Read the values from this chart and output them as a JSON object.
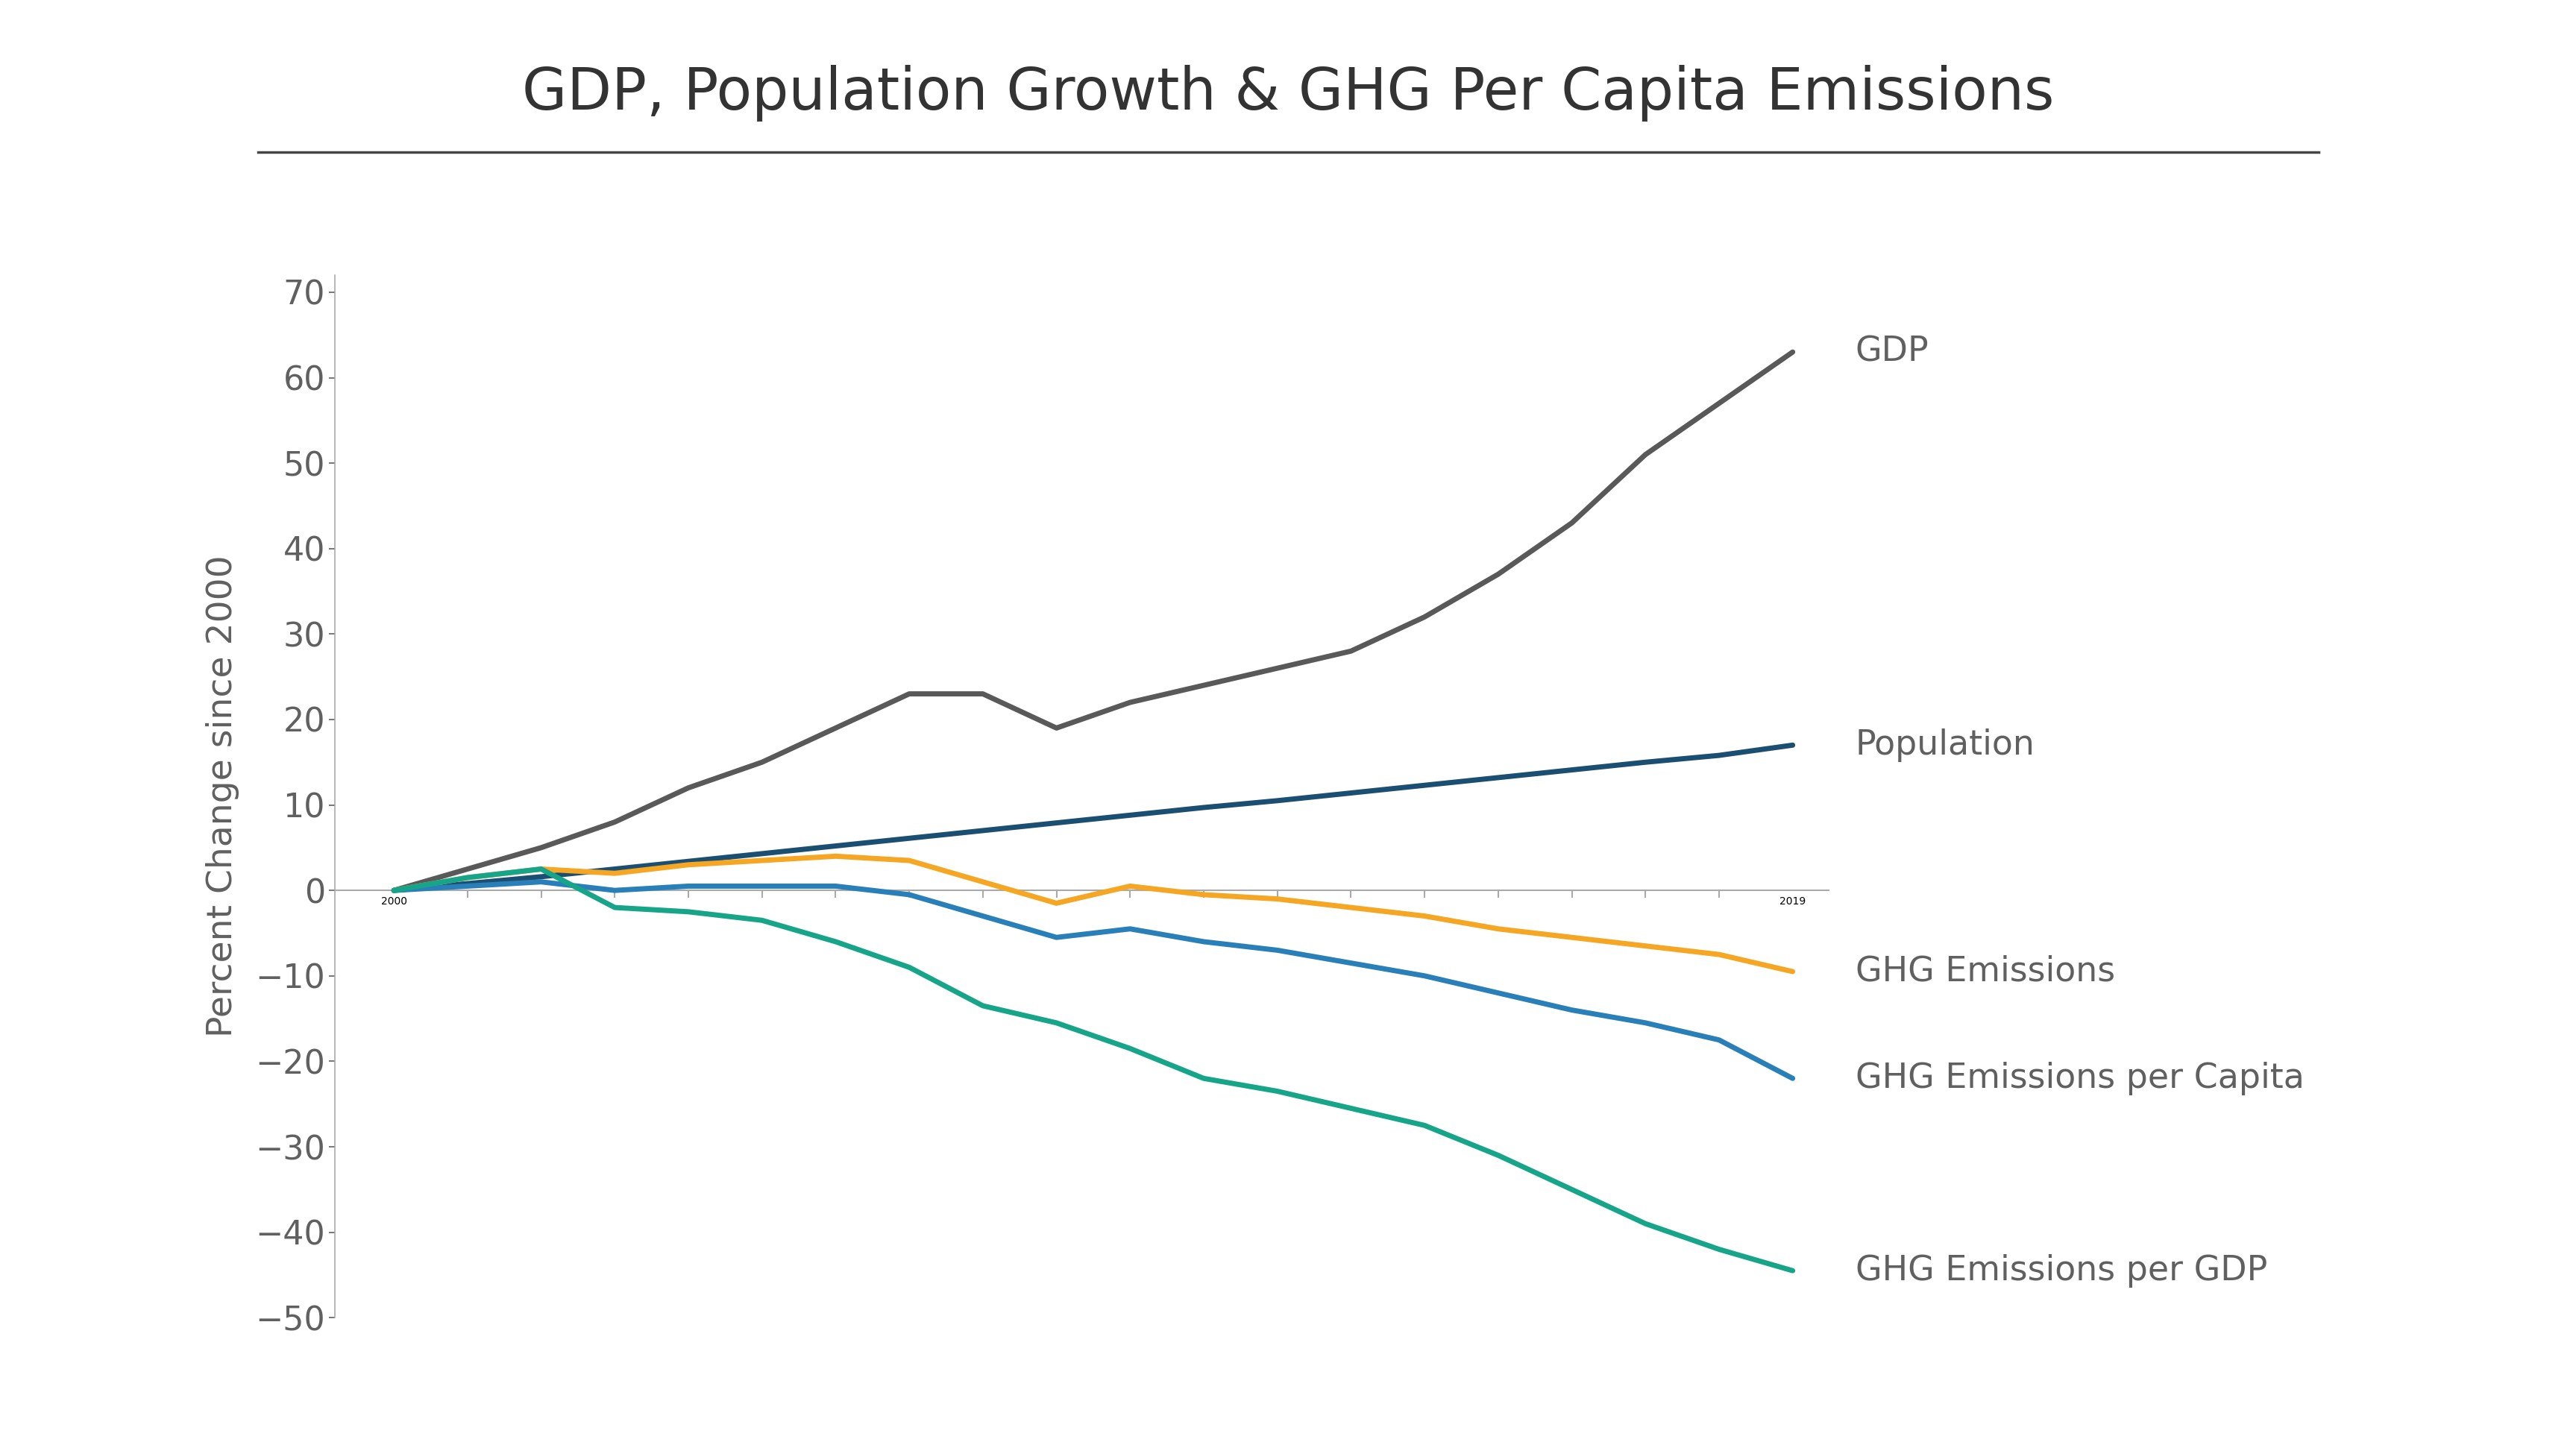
{
  "title": "GDP, Population Growth & GHG Per Capita Emissions",
  "ylabel": "Percent Change since 2000",
  "ylim": [
    -50,
    72
  ],
  "yticks": [
    -50,
    -40,
    -30,
    -20,
    -10,
    0,
    10,
    20,
    30,
    40,
    50,
    60,
    70
  ],
  "xlim": [
    1999.2,
    2019.5
  ],
  "xtick_years": [
    2000,
    2019
  ],
  "background_color": "#ffffff",
  "title_fontsize": 56,
  "label_fontsize": 34,
  "tick_fontsize": 32,
  "annotation_fontsize": 33,
  "line_width": 5.0,
  "series": {
    "GDP": {
      "color": "#595959",
      "years": [
        2000,
        2001,
        2002,
        2003,
        2004,
        2005,
        2006,
        2007,
        2008,
        2009,
        2010,
        2011,
        2012,
        2013,
        2014,
        2015,
        2016,
        2017,
        2018,
        2019
      ],
      "values": [
        0,
        2.5,
        5,
        8,
        12,
        15,
        19,
        23,
        23,
        19,
        22,
        24,
        26,
        28,
        32,
        37,
        43,
        51,
        57,
        63
      ]
    },
    "Population": {
      "color": "#1b4f72",
      "years": [
        2000,
        2001,
        2002,
        2003,
        2004,
        2005,
        2006,
        2007,
        2008,
        2009,
        2010,
        2011,
        2012,
        2013,
        2014,
        2015,
        2016,
        2017,
        2018,
        2019
      ],
      "values": [
        0,
        0.8,
        1.6,
        2.5,
        3.4,
        4.3,
        5.2,
        6.1,
        7.0,
        7.9,
        8.8,
        9.7,
        10.5,
        11.4,
        12.3,
        13.2,
        14.1,
        15.0,
        15.8,
        17.0
      ]
    },
    "GHG Emissions": {
      "color": "#f5a623",
      "years": [
        2000,
        2001,
        2002,
        2003,
        2004,
        2005,
        2006,
        2007,
        2008,
        2009,
        2010,
        2011,
        2012,
        2013,
        2014,
        2015,
        2016,
        2017,
        2018,
        2019
      ],
      "values": [
        0,
        1.5,
        2.5,
        2.0,
        3.0,
        3.5,
        4.0,
        3.5,
        1.0,
        -1.5,
        0.5,
        -0.5,
        -1.0,
        -2.0,
        -3.0,
        -4.5,
        -5.5,
        -6.5,
        -7.5,
        -9.5
      ]
    },
    "GHG Emissions per Capita": {
      "color": "#2980b9",
      "years": [
        2000,
        2001,
        2002,
        2003,
        2004,
        2005,
        2006,
        2007,
        2008,
        2009,
        2010,
        2011,
        2012,
        2013,
        2014,
        2015,
        2016,
        2017,
        2018,
        2019
      ],
      "values": [
        0,
        0.5,
        1.0,
        0.0,
        0.5,
        0.5,
        0.5,
        -0.5,
        -3.0,
        -5.5,
        -4.5,
        -6.0,
        -7.0,
        -8.5,
        -10.0,
        -12.0,
        -14.0,
        -15.5,
        -17.5,
        -22.0
      ]
    },
    "GHG Emissions per GDP": {
      "color": "#17a589",
      "years": [
        2000,
        2001,
        2002,
        2003,
        2004,
        2005,
        2006,
        2007,
        2008,
        2009,
        2010,
        2011,
        2012,
        2013,
        2014,
        2015,
        2016,
        2017,
        2018,
        2019
      ],
      "values": [
        0,
        1.5,
        2.5,
        -2.0,
        -2.5,
        -3.5,
        -6.0,
        -9.0,
        -13.5,
        -15.5,
        -18.5,
        -22.0,
        -23.5,
        -25.5,
        -27.5,
        -31.0,
        -35.0,
        -39.0,
        -42.0,
        -44.5
      ]
    }
  },
  "annotations": {
    "GDP": {
      "y": 63
    },
    "Population": {
      "y": 17.0
    },
    "GHG Emissions": {
      "y": -9.5
    },
    "GHG Emissions per Capita": {
      "y": -22.0
    },
    "GHG Emissions per GDP": {
      "y": -44.5
    }
  }
}
